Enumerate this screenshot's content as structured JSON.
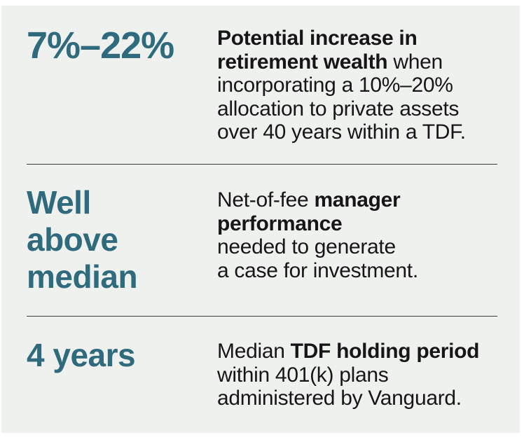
{
  "colors": {
    "page_bg": "#ffffff",
    "panel_bg": "#eff1ef",
    "accent": "#2f6b7d",
    "text": "#161616",
    "divider": "#3a3a3a"
  },
  "rows": [
    {
      "stat_lines": [
        "7%–22%"
      ],
      "stat_size": "large",
      "desc_lines": [
        [
          {
            "t": "Potential increase in",
            "b": true
          }
        ],
        [
          {
            "t": "retirement wealth",
            "b": true
          },
          {
            "t": " when",
            "b": false
          }
        ],
        [
          {
            "t": "incorporating a 10%–20%",
            "b": false
          }
        ],
        [
          {
            "t": "allocation to private assets",
            "b": false
          }
        ],
        [
          {
            "t": "over 40 years within a TDF.",
            "b": false
          }
        ]
      ]
    },
    {
      "stat_lines": [
        "Well",
        "above",
        "median"
      ],
      "stat_size": "small",
      "desc_lines": [
        [
          {
            "t": "Net-of-fee ",
            "b": false
          },
          {
            "t": "manager",
            "b": true
          }
        ],
        [
          {
            "t": "performance",
            "b": true
          }
        ],
        [
          {
            "t": "needed to generate",
            "b": false
          }
        ],
        [
          {
            "t": "a case for investment.",
            "b": false
          }
        ]
      ]
    },
    {
      "stat_lines": [
        "4 years"
      ],
      "stat_size": "small",
      "desc_lines": [
        [
          {
            "t": "Median ",
            "b": false
          },
          {
            "t": "TDF holding period",
            "b": true
          }
        ],
        [
          {
            "t": "within 401(k) plans",
            "b": false
          }
        ],
        [
          {
            "t": "administered by Vanguard.",
            "b": false
          }
        ]
      ]
    }
  ]
}
